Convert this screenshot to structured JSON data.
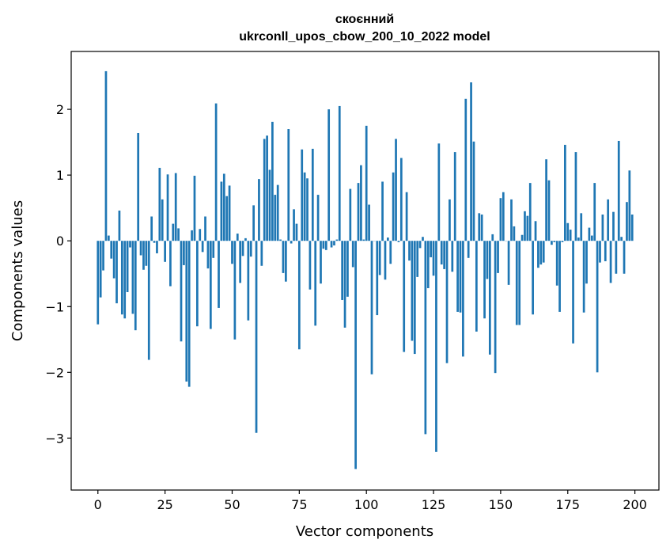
{
  "chart_data": {
    "type": "bar",
    "title_line1": "скоєнний",
    "title_line2": "ukrconll_upos_cbow_200_10_2022 model",
    "xlabel": "Vector components",
    "ylabel": "Components values",
    "xlim": [
      -9.95,
      208.95
    ],
    "ylim": [
      -3.79,
      2.88
    ],
    "xticks": [
      0,
      25,
      50,
      75,
      100,
      125,
      150,
      175,
      200
    ],
    "xtick_labels": [
      "0",
      "25",
      "50",
      "75",
      "100",
      "125",
      "150",
      "175",
      "200"
    ],
    "yticks": [
      -3,
      -2,
      -1,
      0,
      1,
      2
    ],
    "ytick_labels": [
      "−3",
      "−2",
      "−1",
      "0",
      "1",
      "2"
    ],
    "grid": false,
    "bar_color": "#1f77b4",
    "x": [
      0,
      1,
      2,
      3,
      4,
      5,
      6,
      7,
      8,
      9,
      10,
      11,
      12,
      13,
      14,
      15,
      16,
      17,
      18,
      19,
      20,
      21,
      22,
      23,
      24,
      25,
      26,
      27,
      28,
      29,
      30,
      31,
      32,
      33,
      34,
      35,
      36,
      37,
      38,
      39,
      40,
      41,
      42,
      43,
      44,
      45,
      46,
      47,
      48,
      49,
      50,
      51,
      52,
      53,
      54,
      55,
      56,
      57,
      58,
      59,
      60,
      61,
      62,
      63,
      64,
      65,
      66,
      67,
      68,
      69,
      70,
      71,
      72,
      73,
      74,
      75,
      76,
      77,
      78,
      79,
      80,
      81,
      82,
      83,
      84,
      85,
      86,
      87,
      88,
      89,
      90,
      91,
      92,
      93,
      94,
      95,
      96,
      97,
      98,
      99,
      100,
      101,
      102,
      103,
      104,
      105,
      106,
      107,
      108,
      109,
      110,
      111,
      112,
      113,
      114,
      115,
      116,
      117,
      118,
      119,
      120,
      121,
      122,
      123,
      124,
      125,
      126,
      127,
      128,
      129,
      130,
      131,
      132,
      133,
      134,
      135,
      136,
      137,
      138,
      139,
      140,
      141,
      142,
      143,
      144,
      145,
      146,
      147,
      148,
      149,
      150,
      151,
      152,
      153,
      154,
      155,
      156,
      157,
      158,
      159,
      160,
      161,
      162,
      163,
      164,
      165,
      166,
      167,
      168,
      169,
      170,
      171,
      172,
      173,
      174,
      175,
      176,
      177,
      178,
      179,
      180,
      181,
      182,
      183,
      184,
      185,
      186,
      187,
      188,
      189,
      190,
      191,
      192,
      193,
      194,
      195,
      196,
      197,
      198,
      199
    ],
    "values": [
      -1.27,
      -0.86,
      -0.45,
      2.58,
      0.08,
      -0.27,
      -0.57,
      -0.95,
      0.46,
      -1.12,
      -1.18,
      -0.78,
      -0.1,
      -1.11,
      -1.36,
      1.64,
      -0.22,
      -0.44,
      -0.38,
      -1.81,
      0.37,
      -0.03,
      -0.19,
      1.11,
      0.63,
      -0.32,
      1.01,
      -0.69,
      0.26,
      1.03,
      0.19,
      -1.53,
      -0.37,
      -2.14,
      -2.22,
      0.16,
      0.99,
      -1.3,
      0.18,
      -0.17,
      0.37,
      -0.42,
      -1.34,
      -0.26,
      2.09,
      -1.02,
      0.9,
      1.02,
      0.68,
      0.84,
      -0.35,
      -1.5,
      0.11,
      -0.64,
      -0.23,
      0.04,
      -1.21,
      -0.24,
      0.54,
      -2.92,
      0.94,
      -0.38,
      1.55,
      1.6,
      1.08,
      1.81,
      0.7,
      0.85,
      0.02,
      -0.49,
      -0.62,
      1.7,
      -0.04,
      0.48,
      0.26,
      -1.65,
      1.39,
      1.04,
      0.95,
      -0.74,
      1.4,
      -1.29,
      0.7,
      -0.65,
      -0.12,
      -0.14,
      2.0,
      -0.1,
      -0.07,
      0.02,
      2.05,
      -0.9,
      -1.32,
      -0.85,
      0.79,
      -0.4,
      -3.47,
      0.88,
      1.15,
      0.02,
      1.75,
      0.55,
      -2.03,
      0.0,
      -1.13,
      -0.52,
      0.9,
      -0.59,
      0.05,
      -0.35,
      1.04,
      1.55,
      -0.02,
      1.26,
      -1.69,
      0.74,
      -0.3,
      -1.52,
      -1.72,
      -0.55,
      -0.11,
      0.06,
      -2.94,
      -0.72,
      -0.25,
      -0.53,
      -3.21,
      1.48,
      -0.36,
      -0.43,
      -1.86,
      0.63,
      -0.47,
      1.35,
      -1.08,
      -1.09,
      -1.76,
      2.16,
      -0.26,
      2.41,
      1.51,
      -1.38,
      0.42,
      0.4,
      -1.18,
      -0.58,
      -1.73,
      0.1,
      -2.01,
      -0.49,
      0.65,
      0.74,
      0.0,
      -0.67,
      0.63,
      0.22,
      -1.28,
      -1.28,
      0.09,
      0.45,
      0.38,
      0.88,
      -1.12,
      0.3,
      -0.41,
      -0.36,
      -0.33,
      1.24,
      0.92,
      -0.06,
      -0.02,
      -0.68,
      -1.08,
      -0.02,
      1.46,
      0.27,
      0.17,
      -1.56,
      1.35,
      0.05,
      0.42,
      -1.09,
      -0.65,
      0.2,
      0.08,
      0.88,
      -2.0,
      -0.33,
      0.4,
      -0.31,
      0.63,
      -0.64,
      0.44,
      -0.5,
      1.52,
      0.06,
      -0.5,
      0.59,
      1.07,
      0.4
    ]
  }
}
